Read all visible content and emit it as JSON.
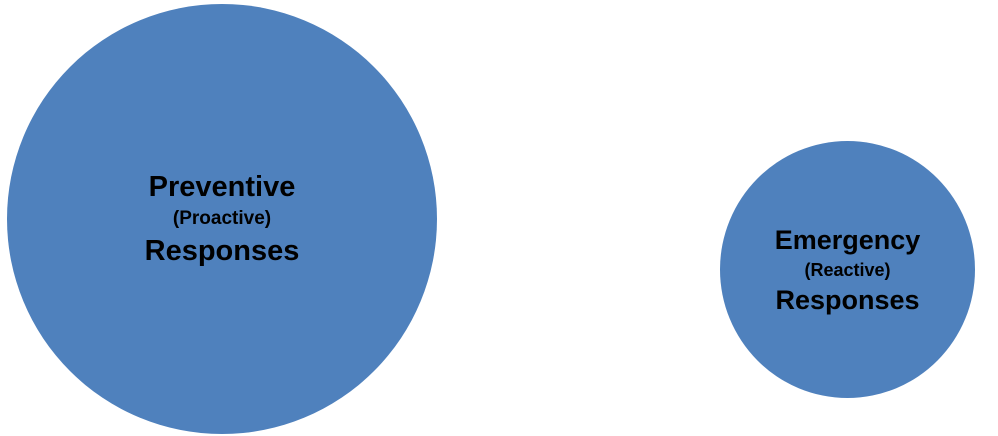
{
  "colors": {
    "circle_fill": "#4f81bd",
    "text": "#000000",
    "background": "#ffffff"
  },
  "circles": [
    {
      "title": "Preventive",
      "subtitle": "(Proactive)",
      "footer": "Responses"
    },
    {
      "title": "Emergency",
      "subtitle": "(Reactive)",
      "footer": "Responses"
    }
  ]
}
